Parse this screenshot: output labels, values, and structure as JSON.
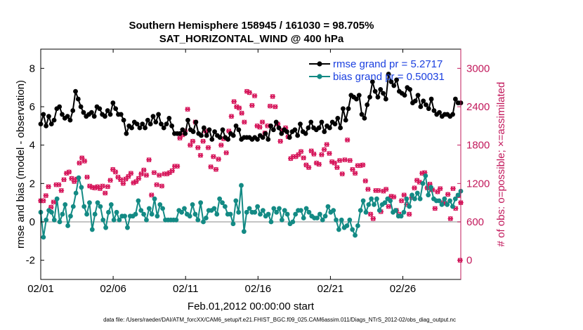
{
  "chart_data": {
    "type": "line",
    "title": "Southern Hemisphere 158945 / 161030 = 98.705%",
    "subtitle": "SAT_HORIZONTAL_WIND @ 400 hPa",
    "xlabel": "Feb.01,2012 00:00:00 start",
    "ylabel_left": "rmse and bias (model - observation)",
    "ylabel_right": "# of obs: o=possible; ×=assimilated",
    "footnote": "data file: /Users/raeder/DAI/ATM_forcXX/CAM6_setup/f.e21.FHIST_BGC.f09_025.CAM6assim.011/Diags_NTrS_2012-02/obs_diag_output.nc",
    "x_tick_labels": [
      "02/01",
      "02/06",
      "02/11",
      "02/16",
      "02/21",
      "02/26"
    ],
    "x_tick_days": [
      0,
      5,
      10,
      15,
      20,
      25
    ],
    "xlim": [
      0,
      29
    ],
    "ylim_left": [
      -3,
      9
    ],
    "y_ticks_left": [
      "-2",
      "0",
      "2",
      "4",
      "6",
      "8"
    ],
    "ylim_right": [
      -300,
      3300
    ],
    "y_ticks_right": [
      "0",
      "600",
      "1200",
      "1800",
      "2400",
      "3000"
    ],
    "zero_line": 0,
    "grid": false,
    "legend_position": "top-right",
    "colors": {
      "rmse": "#000000",
      "bias": "#138a84",
      "obs": "#d6155a",
      "zero_line": "#b0b0b0",
      "legend_text": "#1a3fe0",
      "right_axis": "#c2185b"
    },
    "series": [
      {
        "name": "rmse grand pr = 5.2717",
        "axis": "left",
        "values": [
          5.1,
          5.6,
          5.0,
          5.5,
          5.1,
          5.3,
          5.9,
          6.0,
          5.6,
          5.4,
          5.5,
          5.3,
          5.8,
          6.8,
          6.4,
          6.0,
          5.7,
          5.5,
          5.6,
          5.7,
          5.5,
          6.0,
          5.9,
          5.6,
          5.5,
          5.8,
          5.6,
          6.2,
          5.9,
          5.6,
          5.6,
          5.3,
          4.6,
          5.0,
          4.9,
          5.2,
          5.1,
          4.9,
          5.1,
          4.9,
          5.3,
          5.1,
          5.5,
          5.2,
          5.6,
          5.1,
          4.9,
          5.1,
          5.4,
          5.0,
          4.6,
          4.6,
          4.6,
          4.8,
          4.6,
          5.3,
          4.8,
          4.7,
          5.2,
          4.6,
          4.5,
          4.9,
          4.5,
          4.8,
          4.3,
          4.7,
          4.5,
          4.4,
          4.8,
          4.4,
          4.3,
          4.6,
          4.5,
          5.0,
          4.8,
          4.3,
          4.4,
          4.4,
          4.4,
          4.3,
          4.4,
          4.3,
          4.5,
          4.4,
          4.6,
          4.3,
          5.0,
          4.8,
          5.2,
          4.9,
          4.6,
          4.8,
          4.7,
          4.4,
          4.7,
          4.8,
          4.5,
          5.1,
          4.7,
          4.6,
          4.9,
          5.2,
          4.9,
          4.8,
          4.9,
          5.2,
          4.7,
          5.0,
          4.9,
          5.2,
          5.1,
          5.4,
          4.9,
          5.9,
          5.3,
          5.9,
          6.6,
          6.5,
          6.4,
          6.6,
          5.6,
          5.4,
          6.1,
          6.5,
          7.3,
          6.8,
          6.5,
          6.9,
          6.7,
          6.4,
          7.7,
          7.3,
          7.1,
          7.4,
          6.8,
          6.7,
          6.6,
          7.0,
          6.9,
          6.2,
          6.3,
          6.6,
          6.0,
          6.3,
          6.1,
          5.9,
          6.4,
          5.8,
          5.6,
          5.7,
          5.5,
          5.6,
          5.6,
          5.5,
          5.6,
          6.4,
          6.2,
          6.2
        ]
      },
      {
        "name": "bias grand pr = 0.50031",
        "axis": "left",
        "values": [
          0.5,
          -0.8,
          0.1,
          0.6,
          0.5,
          0.1,
          1.2,
          0.0,
          0.4,
          0.9,
          -0.2,
          0.3,
          0.8,
          1.5,
          2.3,
          1.8,
          0.8,
          0.4,
          1.0,
          -0.4,
          0.4,
          1.0,
          0.8,
          0.1,
          -0.3,
          0.5,
          0.9,
          0.1,
          0.5,
          0.1,
          0.3,
          0.3,
          -0.3,
          0.3,
          0.3,
          0.4,
          1.1,
          0.6,
          0.4,
          0.1,
          0.7,
          0.4,
          1.2,
          0.3,
          0.9,
          0.7,
          0.1,
          0.1,
          0.1,
          0.1,
          0.1,
          0.6,
          0.5,
          0.7,
          0.4,
          0.3,
          0.9,
          0.4,
          0.1,
          1.0,
          0.0,
          0.2,
          0.6,
          0.6,
          0.7,
          0.4,
          1.2,
          1.0,
          0.8,
          0.4,
          0.4,
          -0.1,
          1.1,
          0.5,
          1.9,
          -0.5,
          0.5,
          0.7,
          0.5,
          0.5,
          0.8,
          0.4,
          0.6,
          0.3,
          0.4,
          0.0,
          0.7,
          0.5,
          0.7,
          0.1,
          0.6,
          0.4,
          -0.1,
          0.0,
          0.4,
          0.6,
          0.6,
          0.2,
          0.7,
          0.5,
          0.3,
          0.2,
          0.2,
          0.4,
          0.1,
          0.3,
          0.8,
          0.5,
          0.6,
          0.1,
          -0.4,
          0.1,
          -0.3,
          -0.2,
          0.1,
          -0.4,
          -0.7,
          -0.2,
          0.6,
          1.1,
          0.5,
          0.9,
          1.2,
          0.9,
          1.2,
          0.6,
          0.9,
          1.0,
          1.2,
          1.1,
          0.5,
          0.6,
          0.3,
          0.3,
          0.5,
          1.2,
          0.8,
          1.4,
          1.2,
          1.5,
          1.2,
          2.0,
          2.4,
          1.4,
          1.8,
          1.2,
          1.1,
          1.1,
          0.9,
          1.2,
          0.9,
          1.1,
          0.8,
          1.2,
          1.4,
          1.6
        ]
      },
      {
        "name": "# of obs possible (o) / assimilated (×)",
        "axis": "right",
        "values": [
          930,
          930,
          1010,
          1150,
          830,
          910,
          1180,
          1180,
          1090,
          1260,
          1360,
          1380,
          1280,
          1230,
          1270,
          1520,
          1600,
          1550,
          1300,
          1160,
          1140,
          1130,
          1150,
          1120,
          1160,
          1050,
          1150,
          1250,
          1420,
          1380,
          1300,
          1260,
          1200,
          1270,
          1310,
          1360,
          1210,
          1230,
          1280,
          1350,
          1410,
          1330,
          1570,
          1020,
          1370,
          1180,
          1330,
          1160,
          1350,
          1350,
          1370,
          1400,
          1470,
          1470,
          1910,
          1960,
          2020,
          2360,
          1800,
          1860,
          2160,
          1760,
          1640,
          1860,
          2020,
          1760,
          1460,
          1620,
          1420,
          1580,
          1800,
          1900,
          1680,
          2020,
          2250,
          2480,
          2400,
          2380,
          2300,
          2160,
          2640,
          2620,
          2420,
          2570,
          2100,
          2080,
          2160,
          1990,
          2100,
          2410,
          2560,
          2400,
          2130,
          1860,
          2030,
          2070,
          1930,
          1590,
          1620,
          1620,
          1650,
          1700,
          1600,
          1490,
          1450,
          1710,
          1660,
          1520,
          1500,
          1650,
          1730,
          1810,
          1670,
          1540,
          1520,
          1450,
          1560,
          1350,
          1570,
          1880,
          1560,
          1420,
          1360,
          1480,
          1480,
          1490,
          1240,
          1110,
          720,
          650,
          1090,
          1090,
          760,
          1080,
          1110,
          840,
          1000,
          990,
          780,
          720,
          930,
          1020,
          870,
          720,
          980,
          1130,
          1250,
          1220,
          1360,
          1370,
          1130,
          1190,
          1100,
          810,
          1070,
          1120,
          900,
          890,
          1030,
          650,
          1120,
          810,
          1010,
          900
        ]
      }
    ],
    "obs_outliers": [
      {
        "x": 29,
        "y": 0
      }
    ]
  }
}
